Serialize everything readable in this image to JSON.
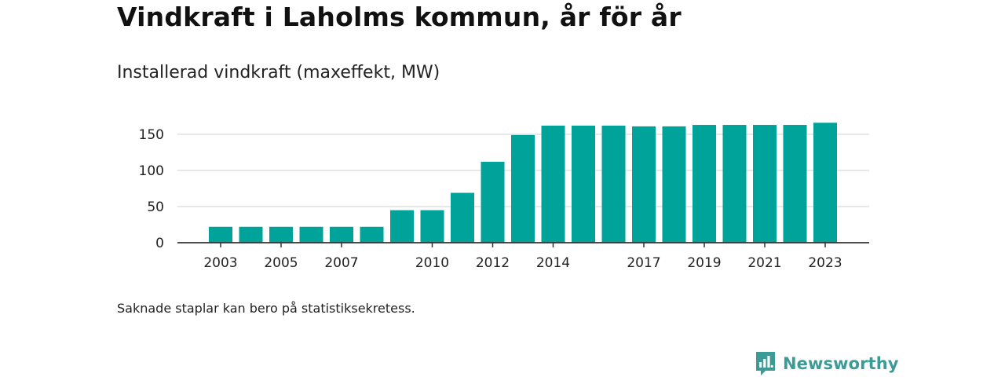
{
  "title": "Vindkraft i Laholms kommun, år för år",
  "subtitle": "Installerad vindkraft (maxeffekt, MW)",
  "note": "Saknade staplar kan bero på statistiksekretess.",
  "brand": {
    "name": "Newsworthy",
    "icon": "newsworthy-logo-icon",
    "color": "#3d9b97"
  },
  "colors": {
    "bar": "#00a39a",
    "grid": "#d9d9d9",
    "axis": "#333333"
  },
  "chart_data": {
    "type": "bar",
    "title": "Vindkraft i Laholms kommun, år för år",
    "subtitle": "Installerad vindkraft (maxeffekt, MW)",
    "categories": [
      "2003",
      "2004",
      "2005",
      "2006",
      "2007",
      "2008",
      "2009",
      "2010",
      "2011",
      "2012",
      "2013",
      "2014",
      "2015",
      "2016",
      "2017",
      "2018",
      "2019",
      "2020",
      "2021",
      "2022",
      "2023"
    ],
    "values": [
      22,
      22,
      22,
      22,
      22,
      22,
      45,
      45,
      69,
      112,
      149,
      162,
      162,
      162,
      161,
      161,
      163,
      163,
      163,
      163,
      166
    ],
    "x_tick_labels": [
      "2003",
      "2005",
      "2007",
      "2010",
      "2012",
      "2014",
      "2017",
      "2019",
      "2021",
      "2023"
    ],
    "y_ticks": [
      0,
      50,
      100,
      150
    ],
    "ylim": [
      0,
      175
    ],
    "xlabel": "",
    "ylabel": "",
    "grid": true,
    "legend": "none"
  }
}
